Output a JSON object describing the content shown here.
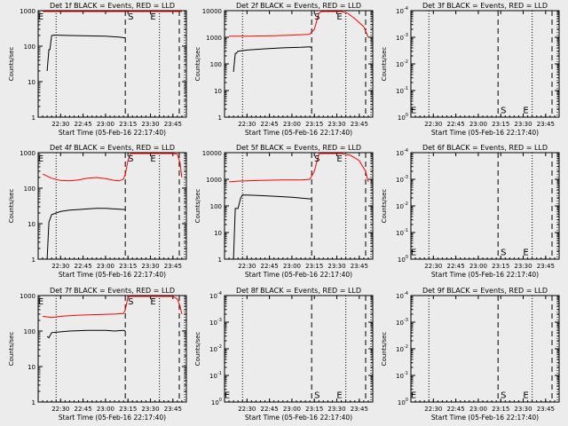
{
  "figure": {
    "background": "#ececec",
    "colors": {
      "events": "#000000",
      "lld": "#ff0000",
      "axes": "#000000"
    },
    "xlabel": "Start Time (05-Feb-16 22:17:40)",
    "ylabel": "Counts/sec",
    "xtick_labels": [
      "22:30",
      "22:45",
      "23:00",
      "23:15",
      "23:30",
      "23:45"
    ],
    "marker_labels": {
      "start": "S",
      "end": "E"
    }
  },
  "chart_data": [
    {
      "type": "line",
      "title": "Det 1f BLACK = Events, RED = LLD",
      "xlabel": "Start Time (05-Feb-16 22:17:40)",
      "ylabel": "Counts/sec",
      "xlim_hours": [
        22.25,
        23.9
      ],
      "yscale": "log",
      "ylim": [
        1,
        1000
      ],
      "ytick_labels": [
        "1",
        "10",
        "100",
        "1000"
      ],
      "dotted_lines_hours": [
        22.45,
        23.6,
        23.95
      ],
      "dashed_lines_hours": [
        23.22,
        23.85
      ],
      "annotations": [
        {
          "text": "E",
          "x_hours": 22.28,
          "y": 800
        },
        {
          "text": "S",
          "x_hours": 23.28,
          "y": 800
        },
        {
          "text": "E",
          "x_hours": 23.53,
          "y": 800
        }
      ],
      "series": [
        {
          "name": "LLD",
          "color": "#ff0000",
          "points": [
            [
              22.3,
              1000
            ],
            [
              22.5,
              1000
            ],
            [
              22.8,
              1000
            ],
            [
              23.1,
              1000
            ],
            [
              23.22,
              1000
            ],
            [
              23.25,
              1100
            ],
            [
              23.85,
              1100
            ]
          ]
        },
        {
          "name": "Events",
          "color": "#000000",
          "points": [
            [
              22.35,
              20
            ],
            [
              22.37,
              80
            ],
            [
              22.38,
              80
            ],
            [
              22.4,
              200
            ],
            [
              22.43,
              205
            ],
            [
              22.6,
              200
            ],
            [
              22.8,
              195
            ],
            [
              23.0,
              190
            ],
            [
              23.15,
              180
            ],
            [
              23.22,
              170
            ]
          ]
        }
      ]
    },
    {
      "type": "line",
      "title": "Det 2f BLACK = Events, RED = LLD",
      "xlabel": "Start Time (05-Feb-16 22:17:40)",
      "ylabel": "Counts/sec",
      "xlim_hours": [
        22.25,
        23.9
      ],
      "yscale": "log",
      "ylim": [
        1,
        10000
      ],
      "ytick_labels": [
        "1",
        "10",
        "100",
        "1000",
        "10000"
      ],
      "dotted_lines_hours": [
        22.45,
        23.6,
        23.95
      ],
      "dashed_lines_hours": [
        23.22,
        23.85
      ],
      "annotations": [
        {
          "text": "S",
          "x_hours": 23.28,
          "y": 8000
        },
        {
          "text": "E",
          "x_hours": 23.53,
          "y": 8000
        }
      ],
      "series": [
        {
          "name": "LLD",
          "color": "#ff0000",
          "points": [
            [
              22.3,
              1100
            ],
            [
              22.5,
              1100
            ],
            [
              22.8,
              1150
            ],
            [
              23.0,
              1200
            ],
            [
              23.1,
              1250
            ],
            [
              23.2,
              1300
            ],
            [
              23.25,
              2000
            ],
            [
              23.3,
              8000
            ],
            [
              23.33,
              12000
            ],
            [
              23.55,
              10000
            ],
            [
              23.62,
              8000
            ],
            [
              23.7,
              5000
            ],
            [
              23.8,
              2500
            ],
            [
              23.85,
              1000
            ]
          ]
        },
        {
          "name": "Events",
          "color": "#000000",
          "points": [
            [
              22.35,
              50
            ],
            [
              22.37,
              250
            ],
            [
              22.38,
              250
            ],
            [
              22.4,
              300
            ],
            [
              22.5,
              330
            ],
            [
              22.7,
              370
            ],
            [
              22.9,
              400
            ],
            [
              23.1,
              420
            ],
            [
              23.2,
              440
            ],
            [
              23.22,
              400
            ]
          ]
        }
      ]
    },
    {
      "type": "line",
      "title": "Det 3f BLACK = Events, RED = LLD",
      "xlabel": "Start Time (05-Feb-16 22:17:40)",
      "ylabel": "Counts/sec",
      "xlim_hours": [
        22.25,
        23.9
      ],
      "yscale": "log",
      "ylim": [
        1,
        10000
      ],
      "ytick_labels": [
        "10<sup>0</sup>",
        "10<sup>-1</sup>",
        "10<sup>-2</sup>",
        "10<sup>-3</sup>",
        "10<sup>-4</sup>"
      ],
      "dotted_lines_hours": [
        22.45,
        23.6,
        23.95
      ],
      "dashed_lines_hours": [
        23.22,
        23.85
      ],
      "annotations": [
        {
          "text": "E",
          "x_hours": 22.28,
          "y": 1.4
        },
        {
          "text": "S",
          "x_hours": 23.28,
          "y": 1.4
        },
        {
          "text": "E",
          "x_hours": 23.53,
          "y": 1.4
        }
      ],
      "series": []
    },
    {
      "type": "line",
      "title": "Det 4f BLACK = Events, RED = LLD",
      "xlabel": "Start Time (05-Feb-16 22:17:40)",
      "ylabel": "Counts/sec",
      "xlim_hours": [
        22.25,
        23.9
      ],
      "yscale": "log",
      "ylim": [
        1,
        1000
      ],
      "ytick_labels": [
        "1",
        "10",
        "100",
        "1000"
      ],
      "dotted_lines_hours": [
        22.45,
        23.6,
        23.95
      ],
      "dashed_lines_hours": [
        23.22,
        23.85
      ],
      "annotations": [
        {
          "text": "E",
          "x_hours": 22.28,
          "y": 800
        },
        {
          "text": "S",
          "x_hours": 23.28,
          "y": 800
        },
        {
          "text": "E",
          "x_hours": 23.53,
          "y": 800
        }
      ],
      "series": [
        {
          "name": "LLD",
          "color": "#ff0000",
          "points": [
            [
              22.3,
              250
            ],
            [
              22.4,
              190
            ],
            [
              22.5,
              165
            ],
            [
              22.6,
              160
            ],
            [
              22.7,
              170
            ],
            [
              22.8,
              190
            ],
            [
              22.9,
              200
            ],
            [
              23.0,
              185
            ],
            [
              23.1,
              165
            ],
            [
              23.15,
              160
            ],
            [
              23.2,
              180
            ],
            [
              23.22,
              250
            ],
            [
              23.25,
              600
            ],
            [
              23.28,
              1000
            ],
            [
              23.75,
              1000
            ],
            [
              23.8,
              900
            ],
            [
              23.83,
              500
            ],
            [
              23.85,
              200
            ]
          ]
        },
        {
          "name": "Events",
          "color": "#000000",
          "points": [
            [
              22.35,
              1
            ],
            [
              22.37,
              11
            ],
            [
              22.4,
              18
            ],
            [
              22.5,
              22
            ],
            [
              22.6,
              24
            ],
            [
              22.7,
              25
            ],
            [
              22.8,
              26
            ],
            [
              22.9,
              27
            ],
            [
              23.0,
              27
            ],
            [
              23.1,
              26
            ],
            [
              23.22,
              25
            ]
          ]
        }
      ]
    },
    {
      "type": "line",
      "title": "Det 5f BLACK = Events, RED = LLD",
      "xlabel": "Start Time (05-Feb-16 22:17:40)",
      "ylabel": "Counts/sec",
      "xlim_hours": [
        22.25,
        23.9
      ],
      "yscale": "log",
      "ylim": [
        1,
        10000
      ],
      "ytick_labels": [
        "1",
        "10",
        "100",
        "1000",
        "10000"
      ],
      "dotted_lines_hours": [
        22.45,
        23.6,
        23.95
      ],
      "dashed_lines_hours": [
        23.22,
        23.85
      ],
      "annotations": [
        {
          "text": "S",
          "x_hours": 23.28,
          "y": 8000
        },
        {
          "text": "E",
          "x_hours": 23.53,
          "y": 8000
        }
      ],
      "series": [
        {
          "name": "LLD",
          "color": "#ff0000",
          "points": [
            [
              22.3,
              800
            ],
            [
              22.4,
              850
            ],
            [
              22.6,
              900
            ],
            [
              22.9,
              950
            ],
            [
              23.1,
              950
            ],
            [
              23.2,
              1000
            ],
            [
              23.25,
              2000
            ],
            [
              23.3,
              9000
            ],
            [
              23.33,
              12000
            ],
            [
              23.55,
              11000
            ],
            [
              23.65,
              8000
            ],
            [
              23.75,
              5000
            ],
            [
              23.82,
              2000
            ],
            [
              23.85,
              800
            ]
          ]
        },
        {
          "name": "Events",
          "color": "#000000",
          "points": [
            [
              22.35,
              1
            ],
            [
              22.37,
              80
            ],
            [
              22.4,
              80
            ],
            [
              22.43,
              200
            ],
            [
              22.45,
              260
            ],
            [
              22.6,
              250
            ],
            [
              22.8,
              230
            ],
            [
              23.0,
              210
            ],
            [
              23.15,
              190
            ],
            [
              23.22,
              180
            ]
          ]
        }
      ]
    },
    {
      "type": "line",
      "title": "Det 6f BLACK = Events, RED = LLD",
      "xlabel": "Start Time (05-Feb-16 22:17:40)",
      "ylabel": "Counts/sec",
      "xlim_hours": [
        22.25,
        23.9
      ],
      "yscale": "log",
      "ylim": [
        1,
        10000
      ],
      "ytick_labels": [
        "10<sup>0</sup>",
        "10<sup>-1</sup>",
        "10<sup>-2</sup>",
        "10<sup>-3</sup>",
        "10<sup>-4</sup>"
      ],
      "dotted_lines_hours": [
        22.45,
        23.6,
        23.95
      ],
      "dashed_lines_hours": [
        23.22,
        23.85
      ],
      "annotations": [
        {
          "text": "E",
          "x_hours": 22.28,
          "y": 1.4
        },
        {
          "text": "S",
          "x_hours": 23.28,
          "y": 1.4
        },
        {
          "text": "E",
          "x_hours": 23.53,
          "y": 1.4
        }
      ],
      "series": []
    },
    {
      "type": "line",
      "title": "Det 7f BLACK = Events, RED = LLD",
      "xlabel": "Start Time (05-Feb-16 22:17:40)",
      "ylabel": "Counts/sec",
      "xlim_hours": [
        22.25,
        23.9
      ],
      "yscale": "log",
      "ylim": [
        1,
        1000
      ],
      "ytick_labels": [
        "1",
        "10",
        "100",
        "1000"
      ],
      "dotted_lines_hours": [
        22.45,
        23.6,
        23.95
      ],
      "dashed_lines_hours": [
        23.22,
        23.85
      ],
      "annotations": [
        {
          "text": "E",
          "x_hours": 22.28,
          "y": 800
        },
        {
          "text": "S",
          "x_hours": 23.28,
          "y": 800
        },
        {
          "text": "E",
          "x_hours": 23.53,
          "y": 800
        }
      ],
      "series": [
        {
          "name": "LLD",
          "color": "#ff0000",
          "points": [
            [
              22.3,
              260
            ],
            [
              22.4,
              240
            ],
            [
              22.5,
              260
            ],
            [
              22.7,
              280
            ],
            [
              22.9,
              290
            ],
            [
              23.1,
              300
            ],
            [
              23.2,
              310
            ],
            [
              23.22,
              400
            ],
            [
              23.25,
              900
            ],
            [
              23.28,
              1000
            ],
            [
              23.75,
              1000
            ],
            [
              23.8,
              800
            ],
            [
              23.83,
              500
            ],
            [
              23.85,
              300
            ]
          ]
        },
        {
          "name": "Events",
          "color": "#000000",
          "points": [
            [
              22.35,
              70
            ],
            [
              22.37,
              65
            ],
            [
              22.4,
              90
            ],
            [
              22.5,
              95
            ],
            [
              22.6,
              100
            ],
            [
              22.8,
              105
            ],
            [
              23.0,
              105
            ],
            [
              23.1,
              100
            ],
            [
              23.2,
              105
            ],
            [
              23.22,
              100
            ]
          ]
        }
      ]
    },
    {
      "type": "line",
      "title": "Det 8f BLACK = Events, RED = LLD",
      "xlabel": "Start Time (05-Feb-16 22:17:40)",
      "ylabel": "Counts/sec",
      "xlim_hours": [
        22.25,
        23.9
      ],
      "yscale": "log",
      "ylim": [
        1,
        10000
      ],
      "ytick_labels": [
        "10<sup>0</sup>",
        "10<sup>-1</sup>",
        "10<sup>-2</sup>",
        "10<sup>-3</sup>",
        "10<sup>-4</sup>"
      ],
      "dotted_lines_hours": [
        22.45,
        23.6,
        23.95
      ],
      "dashed_lines_hours": [
        23.22,
        23.85
      ],
      "annotations": [
        {
          "text": "E",
          "x_hours": 22.28,
          "y": 1.4
        },
        {
          "text": "S",
          "x_hours": 23.28,
          "y": 1.4
        },
        {
          "text": "E",
          "x_hours": 23.53,
          "y": 1.4
        }
      ],
      "series": []
    },
    {
      "type": "line",
      "title": "Det 9f BLACK = Events, RED = LLD",
      "xlabel": "Start Time (05-Feb-16 22:17:40)",
      "ylabel": "Counts/sec",
      "xlim_hours": [
        22.25,
        23.9
      ],
      "yscale": "log",
      "ylim": [
        1,
        10000
      ],
      "ytick_labels": [
        "10<sup>0</sup>",
        "10<sup>-1</sup>",
        "10<sup>-2</sup>",
        "10<sup>-3</sup>",
        "10<sup>-4</sup>"
      ],
      "dotted_lines_hours": [
        22.45,
        23.6,
        23.95
      ],
      "dashed_lines_hours": [
        23.22,
        23.85
      ],
      "annotations": [
        {
          "text": "E",
          "x_hours": 22.28,
          "y": 1.4
        },
        {
          "text": "S",
          "x_hours": 23.28,
          "y": 1.4
        },
        {
          "text": "E",
          "x_hours": 23.53,
          "y": 1.4
        }
      ],
      "series": []
    }
  ]
}
